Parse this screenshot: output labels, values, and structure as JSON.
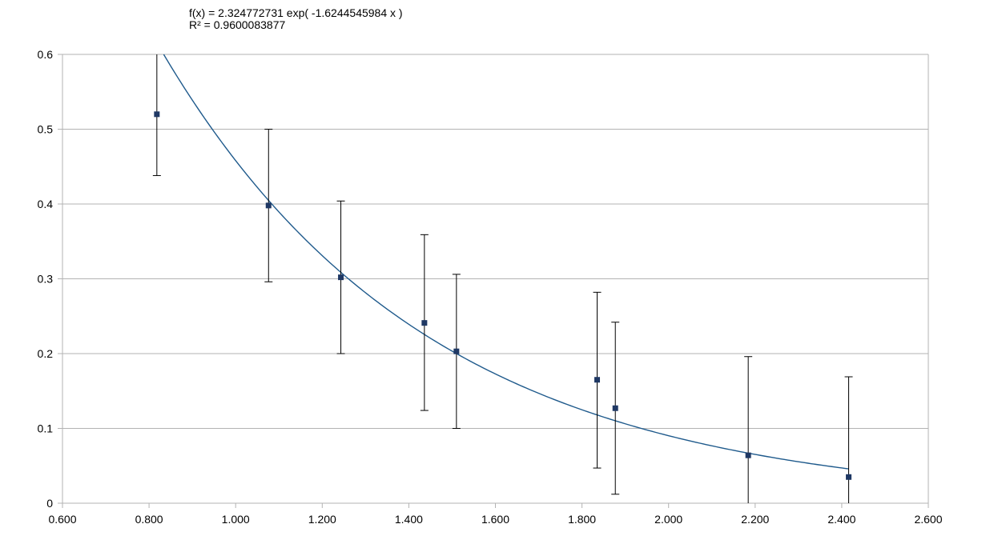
{
  "annotations": {
    "equation": "f(x) = 2.324772731 exp( -1.6244545984 x )",
    "r_squared": "R² = 0.9600083877"
  },
  "chart_data": {
    "type": "scatter",
    "title": "",
    "xlabel": "",
    "ylabel": "",
    "xlim": [
      0.6,
      2.6
    ],
    "ylim": [
      0,
      0.6
    ],
    "x_ticks": [
      "0.600",
      "0.800",
      "1.000",
      "1.200",
      "1.400",
      "1.600",
      "1.800",
      "2.000",
      "2.200",
      "2.400",
      "2.600"
    ],
    "y_ticks": [
      "0",
      "0.1",
      "0.2",
      "0.3",
      "0.4",
      "0.5",
      "0.6"
    ],
    "grid": "horizontal",
    "series": [
      {
        "marker": "square",
        "color": "#1f3864",
        "points": [
          {
            "x": 0.818,
            "y": 0.52,
            "err_low": 0.438,
            "err_high": 0.62
          },
          {
            "x": 1.076,
            "y": 0.398,
            "err_low": 0.296,
            "err_high": 0.5
          },
          {
            "x": 1.243,
            "y": 0.302,
            "err_low": 0.2,
            "err_high": 0.404
          },
          {
            "x": 1.436,
            "y": 0.241,
            "err_low": 0.124,
            "err_high": 0.359
          },
          {
            "x": 1.51,
            "y": 0.203,
            "err_low": 0.1,
            "err_high": 0.306
          },
          {
            "x": 1.835,
            "y": 0.165,
            "err_low": 0.047,
            "err_high": 0.282
          },
          {
            "x": 1.877,
            "y": 0.127,
            "err_low": 0.012,
            "err_high": 0.242
          },
          {
            "x": 2.184,
            "y": 0.064,
            "err_low": 0.0,
            "err_high": 0.196
          },
          {
            "x": 2.416,
            "y": 0.035,
            "err_low": 0.0,
            "err_high": 0.169
          }
        ]
      }
    ],
    "trendline": {
      "type": "exponential",
      "a": 2.324772731,
      "b": -1.6244545984,
      "x_range": [
        0.85,
        2.416
      ],
      "color": "#1f5a8c"
    }
  }
}
